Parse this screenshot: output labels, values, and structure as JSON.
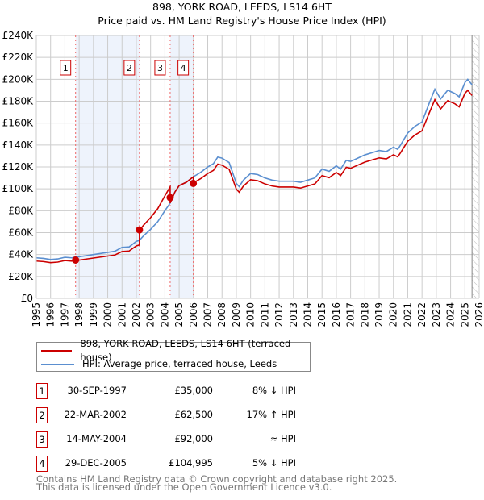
{
  "chart_data": {
    "type": "line",
    "title": "898, YORK ROAD, LEEDS, LS14 6HT",
    "subtitle": "Price paid vs. HM Land Registry's House Price Index (HPI)",
    "xlim": [
      1995,
      2026
    ],
    "ylim": [
      0,
      240000
    ],
    "y_ticks": [
      {
        "v": 0,
        "l": "£0"
      },
      {
        "v": 20000,
        "l": "£20K"
      },
      {
        "v": 40000,
        "l": "£40K"
      },
      {
        "v": 60000,
        "l": "£60K"
      },
      {
        "v": 80000,
        "l": "£80K"
      },
      {
        "v": 100000,
        "l": "£100K"
      },
      {
        "v": 120000,
        "l": "£120K"
      },
      {
        "v": 140000,
        "l": "£140K"
      },
      {
        "v": 160000,
        "l": "£160K"
      },
      {
        "v": 180000,
        "l": "£180K"
      },
      {
        "v": 200000,
        "l": "£200K"
      },
      {
        "v": 220000,
        "l": "£220K"
      },
      {
        "v": 240000,
        "l": "£240K"
      }
    ],
    "x_ticks": [
      "1995",
      "1996",
      "1997",
      "1998",
      "1999",
      "2000",
      "2001",
      "2002",
      "2003",
      "2004",
      "2005",
      "2006",
      "2007",
      "2008",
      "2009",
      "2010",
      "2011",
      "2012",
      "2013",
      "2014",
      "2015",
      "2016",
      "2017",
      "2018",
      "2019",
      "2020",
      "2021",
      "2022",
      "2023",
      "2024",
      "2025",
      "2026"
    ],
    "grid": true,
    "forecast_hatch_from": 2025.5,
    "colors": {
      "property": "#cc0000",
      "hpi": "#5b8fd0",
      "shade": "#eef3fc",
      "grid": "#cccccc"
    },
    "hpi_series": [
      [
        1995,
        37
      ],
      [
        1995.5,
        36.5
      ],
      [
        1996,
        35.5
      ],
      [
        1996.5,
        36
      ],
      [
        1997,
        37.5
      ],
      [
        1997.5,
        37
      ],
      [
        1997.75,
        38
      ],
      [
        1998,
        38
      ],
      [
        1998.5,
        39
      ],
      [
        1999,
        40
      ],
      [
        1999.5,
        41
      ],
      [
        2000,
        42
      ],
      [
        2000.5,
        43
      ],
      [
        2001,
        46.5
      ],
      [
        2001.5,
        47
      ],
      [
        2002,
        52
      ],
      [
        2002.22,
        53
      ],
      [
        2002.5,
        57
      ],
      [
        2003,
        63
      ],
      [
        2003.5,
        70
      ],
      [
        2004,
        80
      ],
      [
        2004.37,
        87
      ],
      [
        2004.7,
        97
      ],
      [
        2005,
        103
      ],
      [
        2005.5,
        106
      ],
      [
        2005.99,
        111
      ],
      [
        2006.5,
        115
      ],
      [
        2007,
        120
      ],
      [
        2007.4,
        123
      ],
      [
        2007.7,
        129
      ],
      [
        2008,
        128
      ],
      [
        2008.5,
        124
      ],
      [
        2009,
        105
      ],
      [
        2009.2,
        102
      ],
      [
        2009.5,
        108
      ],
      [
        2010,
        114
      ],
      [
        2010.5,
        113
      ],
      [
        2011,
        110
      ],
      [
        2011.5,
        108
      ],
      [
        2012,
        107
      ],
      [
        2013,
        107
      ],
      [
        2013.5,
        106
      ],
      [
        2014,
        108
      ],
      [
        2014.5,
        110
      ],
      [
        2015,
        118
      ],
      [
        2015.5,
        116
      ],
      [
        2016,
        121
      ],
      [
        2016.3,
        118
      ],
      [
        2016.7,
        126
      ],
      [
        2017,
        125
      ],
      [
        2017.5,
        128
      ],
      [
        2018,
        131
      ],
      [
        2018.5,
        133
      ],
      [
        2019,
        135
      ],
      [
        2019.5,
        134
      ],
      [
        2020,
        138
      ],
      [
        2020.3,
        136
      ],
      [
        2020.5,
        140
      ],
      [
        2021,
        151
      ],
      [
        2021.5,
        157
      ],
      [
        2022,
        161
      ],
      [
        2022.5,
        178
      ],
      [
        2022.9,
        191
      ],
      [
        2023.3,
        182
      ],
      [
        2023.8,
        190
      ],
      [
        2024.3,
        187
      ],
      [
        2024.6,
        184
      ],
      [
        2025,
        197
      ],
      [
        2025.2,
        200
      ],
      [
        2025.5,
        195
      ]
    ],
    "sales": [
      {
        "n": "1",
        "t": 1997.75,
        "date": "30-SEP-1997",
        "price": 35000,
        "price_label": "£35,000",
        "hpi_label": "8% ↓ HPI",
        "ratio": 0.92
      },
      {
        "n": "2",
        "t": 2002.22,
        "date": "22-MAR-2002",
        "price": 62500,
        "price_label": "£62,500",
        "hpi_label": "17% ↑ HPI",
        "ratio": 1.17
      },
      {
        "n": "3",
        "t": 2004.37,
        "date": "14-MAY-2004",
        "price": 92000,
        "price_label": "£92,000",
        "hpi_label": "≈ HPI",
        "ratio": 1.0
      },
      {
        "n": "4",
        "t": 2005.99,
        "date": "29-DEC-2005",
        "price": 104995,
        "price_label": "£104,995",
        "hpi_label": "5% ↓ HPI",
        "ratio": 0.95
      }
    ],
    "legend": [
      "898, YORK ROAD, LEEDS, LS14 6HT (terraced house)",
      "HPI: Average price, terraced house, Leeds"
    ]
  },
  "footer": [
    "Contains HM Land Registry data © Crown copyright and database right 2025.",
    "This data is licensed under the Open Government Licence v3.0."
  ]
}
